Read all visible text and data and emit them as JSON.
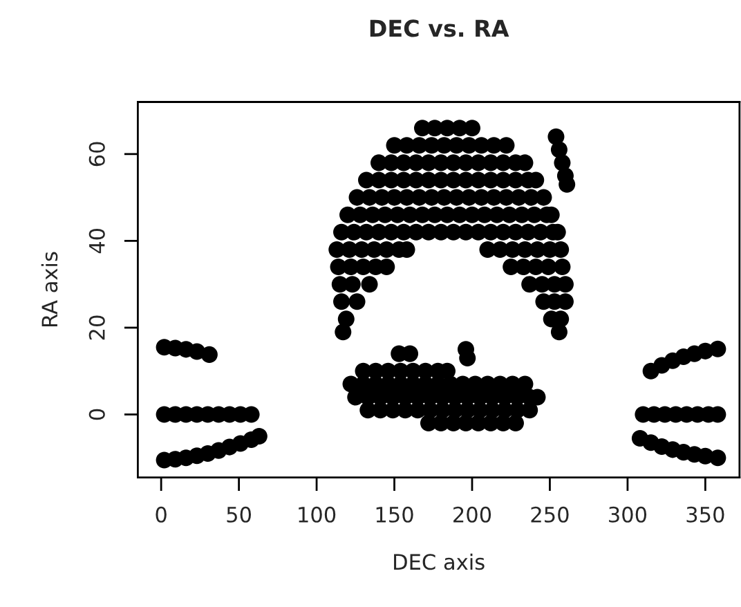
{
  "chart_data": {
    "type": "scatter",
    "title": "DEC vs. RA",
    "xlabel": "DEC axis",
    "ylabel": "RA axis",
    "xlim": [
      -15,
      372
    ],
    "ylim": [
      -14.5,
      72
    ],
    "xticks": [
      0,
      50,
      100,
      150,
      200,
      250,
      300,
      350
    ],
    "yticks": [
      0,
      20,
      40,
      60
    ],
    "grid": false,
    "marker": "circle",
    "series": [
      {
        "color": "#000000",
        "x": [
          168,
          176,
          184,
          192,
          200,
          150,
          158,
          166,
          174,
          182,
          190,
          198,
          206,
          214,
          222,
          140,
          148,
          156,
          164,
          172,
          180,
          188,
          196,
          204,
          212,
          220,
          228,
          234,
          132,
          140,
          148,
          156,
          164,
          172,
          180,
          188,
          196,
          204,
          212,
          220,
          228,
          236,
          241,
          126,
          134,
          142,
          150,
          158,
          166,
          174,
          182,
          190,
          198,
          206,
          214,
          222,
          230,
          238,
          246,
          120,
          128,
          136,
          144,
          152,
          160,
          168,
          176,
          184,
          192,
          200,
          208,
          216,
          224,
          232,
          240,
          248,
          251,
          116,
          124,
          132,
          140,
          148,
          156,
          164,
          172,
          180,
          188,
          196,
          204,
          212,
          220,
          228,
          236,
          244,
          252,
          255
        ],
        "values": [
          66,
          66,
          66,
          66,
          66,
          62,
          62,
          62,
          62,
          62,
          62,
          62,
          62,
          62,
          62,
          58,
          58,
          58,
          58,
          58,
          58,
          58,
          58,
          58,
          58,
          58,
          58,
          58,
          54,
          54,
          54,
          54,
          54,
          54,
          54,
          54,
          54,
          54,
          54,
          54,
          54,
          54,
          54,
          50,
          50,
          50,
          50,
          50,
          50,
          50,
          50,
          50,
          50,
          50,
          50,
          50,
          50,
          50,
          50,
          46,
          46,
          46,
          46,
          46,
          46,
          46,
          46,
          46,
          46,
          46,
          46,
          46,
          46,
          46,
          46,
          46,
          46,
          42,
          42,
          42,
          42,
          42,
          42,
          42,
          42,
          42,
          42,
          42,
          42,
          42,
          42,
          42,
          42,
          42,
          42,
          42
        ]
      },
      {
        "color": "#000000",
        "x": [
          113,
          121,
          129,
          137,
          145,
          153,
          158,
          210,
          218,
          226,
          234,
          242,
          250,
          257,
          114,
          122,
          130,
          138,
          145,
          225,
          233,
          241,
          249,
          258,
          115,
          123,
          134,
          237,
          245,
          253,
          260,
          116,
          126,
          246,
          253,
          260,
          119,
          251,
          257,
          117,
          256
        ],
        "values": [
          38,
          38,
          38,
          38,
          38,
          38,
          38,
          38,
          38,
          38,
          38,
          38,
          38,
          38,
          34,
          34,
          34,
          34,
          34,
          34,
          34,
          34,
          34,
          34,
          30,
          30,
          30,
          30,
          30,
          30,
          30,
          26,
          26,
          26,
          26,
          26,
          22,
          22,
          22,
          19,
          19
        ]
      },
      {
        "color": "#000000",
        "x": [
          254,
          256,
          258,
          260,
          261
        ],
        "values": [
          64,
          61,
          58,
          55,
          53
        ]
      },
      {
        "color": "#000000",
        "x": [
          153,
          160,
          196,
          197,
          130,
          138,
          146,
          154,
          162,
          170,
          178,
          184,
          122,
          130,
          138,
          146,
          154,
          162,
          170,
          178,
          186,
          194,
          202,
          210,
          218,
          226,
          234,
          125,
          133,
          141,
          149,
          157,
          165,
          173,
          181,
          189,
          197,
          205,
          213,
          221,
          229,
          237,
          242,
          133,
          141,
          149,
          157,
          165,
          173,
          181,
          189,
          197,
          205,
          213,
          221,
          229,
          237,
          172,
          180,
          188,
          196,
          204,
          212,
          220,
          228
        ],
        "values": [
          14,
          14,
          15,
          13,
          10,
          10,
          10,
          10,
          10,
          10,
          10,
          10,
          7,
          7,
          7,
          7,
          7,
          7,
          7,
          7,
          7,
          7,
          7,
          7,
          7,
          7,
          7,
          4,
          4,
          4,
          4,
          4,
          4,
          4,
          4,
          4,
          4,
          4,
          4,
          4,
          4,
          4,
          4,
          1,
          1,
          1,
          1,
          1,
          1,
          1,
          1,
          1,
          1,
          1,
          1,
          1,
          1,
          -2,
          -2,
          -2,
          -2,
          -2,
          -2,
          -2,
          -2
        ]
      },
      {
        "color": "#000000",
        "x": [
          2,
          9,
          16,
          23,
          31
        ],
        "values": [
          15.5,
          15.3,
          15,
          14.5,
          13.8
        ]
      },
      {
        "color": "#000000",
        "x": [
          2,
          9,
          16,
          23,
          30,
          37,
          44,
          51,
          58
        ],
        "values": [
          0,
          0,
          0,
          0,
          0,
          0,
          0,
          0,
          0
        ]
      },
      {
        "color": "#000000",
        "x": [
          2,
          9,
          16,
          23,
          30,
          37,
          44,
          51,
          58,
          63
        ],
        "values": [
          -10.5,
          -10.3,
          -10,
          -9.5,
          -9,
          -8.3,
          -7.5,
          -6.7,
          -5.8,
          -5
        ]
      },
      {
        "color": "#000000",
        "x": [
          315,
          322,
          329,
          336,
          343,
          350,
          358
        ],
        "values": [
          10,
          11.3,
          12.4,
          13.3,
          14,
          14.6,
          15.1
        ]
      },
      {
        "color": "#000000",
        "x": [
          310,
          317,
          324,
          331,
          338,
          345,
          352,
          358
        ],
        "values": [
          0,
          0,
          0,
          0,
          0,
          0,
          0,
          0
        ]
      },
      {
        "color": "#000000",
        "x": [
          308,
          315,
          322,
          329,
          336,
          343,
          350,
          358
        ],
        "values": [
          -5.5,
          -6.5,
          -7.4,
          -8.1,
          -8.7,
          -9.2,
          -9.6,
          -10
        ]
      }
    ]
  }
}
